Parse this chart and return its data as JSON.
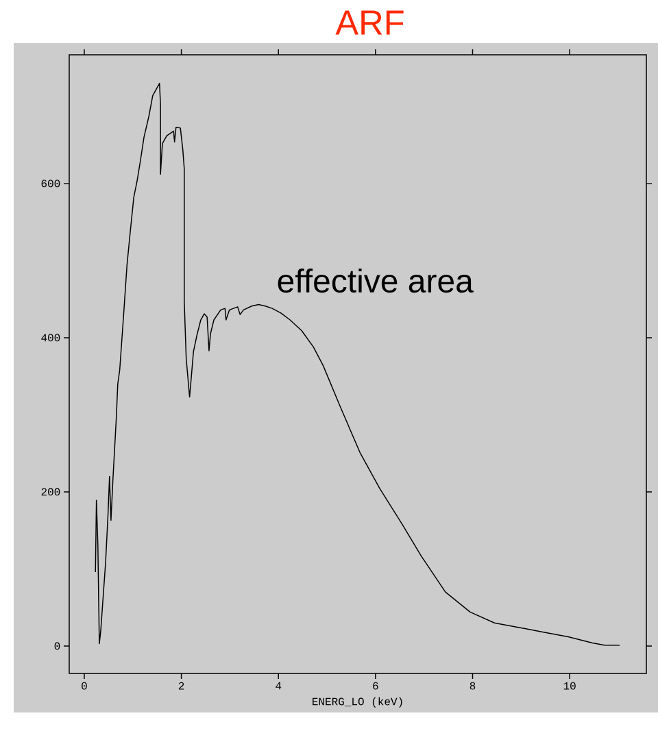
{
  "chart_data": {
    "type": "line",
    "title": "ARF",
    "xlabel": "ENERG_LO (keV)",
    "annotations": [
      "effective area"
    ],
    "xlim": [
      -0.31,
      11.58
    ],
    "ylim": [
      -35.6,
      767
    ],
    "xticks": [
      0,
      2,
      4,
      6,
      8,
      10
    ],
    "yticks": [
      0,
      200,
      400,
      600
    ],
    "series": [
      {
        "color": "#000000",
        "x": [
          0.23,
          0.25,
          0.28,
          0.31,
          0.34,
          0.38,
          0.44,
          0.49,
          0.52,
          0.55,
          0.59,
          0.66,
          0.69,
          0.73,
          0.81,
          0.88,
          0.95,
          1.02,
          1.09,
          1.16,
          1.23,
          1.33,
          1.41,
          1.55,
          1.57,
          1.57,
          1.61,
          1.7,
          1.84,
          1.86,
          1.89,
          1.98,
          2.03,
          2.06,
          2.06,
          2.1,
          2.17,
          2.25,
          2.32,
          2.4,
          2.47,
          2.53,
          2.57,
          2.6,
          2.67,
          2.81,
          2.9,
          2.92,
          2.99,
          3.16,
          3.21,
          3.28,
          3.45,
          3.59,
          3.73,
          3.87,
          4.05,
          4.24,
          4.48,
          4.72,
          4.92,
          5.27,
          5.68,
          6.09,
          6.54,
          6.94,
          7.44,
          7.95,
          8.45,
          8.96,
          9.46,
          9.97,
          10.47,
          10.72,
          11.03
        ],
        "values": [
          96,
          189,
          131,
          3,
          20,
          56,
          109,
          172,
          220,
          163,
          216,
          296,
          340,
          358,
          429,
          494,
          539,
          582,
          604,
          631,
          660,
          687,
          714,
          730,
          703,
          612,
          652,
          662,
          668,
          654,
          673,
          672,
          644,
          619,
          447,
          373,
          323,
          382,
          403,
          423,
          431,
          427,
          383,
          405,
          423,
          436,
          438,
          423,
          436,
          440,
          430,
          436,
          441,
          443,
          441,
          438,
          432,
          423,
          409,
          388,
          364,
          311,
          251,
          204,
          159,
          117,
          70,
          44,
          30,
          24,
          18,
          12,
          4,
          1,
          1
        ]
      }
    ]
  }
}
